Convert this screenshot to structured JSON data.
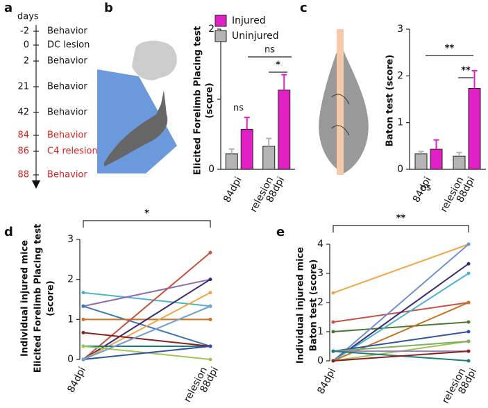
{
  "timeline": {
    "label": "a",
    "title": "days",
    "events": [
      {
        "day": -2,
        "text": "Behavior",
        "color": "#111111"
      },
      {
        "day": 0,
        "text": "DC lesion",
        "color": "#111111"
      },
      {
        "day": 2,
        "text": "Behavior",
        "color": "#111111"
      },
      {
        "day": 21,
        "text": "Behavior",
        "color": "#111111"
      },
      {
        "day": 42,
        "text": "Behavior",
        "color": "#111111"
      },
      {
        "day": 84,
        "text": "Behavior",
        "color": "#d62020"
      },
      {
        "day": 86,
        "text": "C4 relesion",
        "color": "#d62020"
      },
      {
        "day": 88,
        "text": "Behavior",
        "color": "#d62020"
      }
    ]
  },
  "chart_data": [
    {
      "type": "bar",
      "label": "b",
      "ylabel": [
        "Elicited Forelimb Placing test",
        "(score)"
      ],
      "categories": [
        "84dpi",
        [
          "relesion",
          "88dpi"
        ]
      ],
      "legend": "top-left",
      "series": [
        {
          "name": "Injured",
          "color": "#e01fc4",
          "values": [
            0.57,
            1.13
          ],
          "errors": [
            0.17,
            0.22
          ]
        },
        {
          "name": "Uninjured",
          "color": "#b4b4b4",
          "values": [
            0.22,
            0.33
          ],
          "errors": [
            0.07,
            0.11
          ]
        }
      ],
      "ylim": [
        0,
        2
      ],
      "yticks": [
        0,
        1,
        2
      ],
      "annotations": [
        {
          "text": "ns"
        },
        {
          "text": "ns"
        },
        {
          "text": "*"
        }
      ]
    },
    {
      "type": "bar",
      "label": "c",
      "ylabel": [
        "Baton test (score)"
      ],
      "categories": [
        "84dpi",
        [
          "relesion",
          "88dpi"
        ]
      ],
      "series": [
        {
          "name": "Injured",
          "color": "#e01fc4",
          "values": [
            0.43,
            1.73
          ],
          "errors": [
            0.2,
            0.38
          ]
        },
        {
          "name": "Uninjured",
          "color": "#b4b4b4",
          "values": [
            0.33,
            0.28
          ],
          "errors": [
            0.05,
            0.08
          ]
        }
      ],
      "ylim": [
        0,
        3
      ],
      "yticks": [
        0,
        1,
        2,
        3
      ],
      "annotations": [
        {
          "text": "ns"
        },
        {
          "text": "**"
        },
        {
          "text": "**"
        }
      ]
    },
    {
      "type": "line",
      "label": "d",
      "ylabel": [
        "Individual injured mice",
        "Elicited Forelimb Placing test",
        "(score)"
      ],
      "categories": [
        "84dpi",
        [
          "relesion",
          "88dpi"
        ]
      ],
      "series": [
        {
          "color": "#4bb3cc",
          "values": [
            1.67,
            1.33
          ]
        },
        {
          "color": "#8b6cb8",
          "values": [
            1.33,
            2
          ]
        },
        {
          "color": "#3f74b3",
          "values": [
            1.33,
            0.33
          ]
        },
        {
          "color": "#c8701e",
          "values": [
            1,
            1
          ]
        },
        {
          "color": "#c8503e",
          "values": [
            0,
            2.67
          ]
        },
        {
          "color": "#3a2a72",
          "values": [
            0,
            2
          ]
        },
        {
          "color": "#f2a542",
          "values": [
            0,
            1.67
          ]
        },
        {
          "color": "#7a9a8a",
          "values": [
            0,
            1.33
          ]
        },
        {
          "color": "#1f7a7a",
          "values": [
            0.33,
            0.33
          ]
        },
        {
          "color": "#8a2020",
          "values": [
            0.67,
            0.33
          ]
        },
        {
          "color": "#a4c452",
          "values": [
            0.33,
            0
          ]
        },
        {
          "color": "#3052a2",
          "values": [
            0,
            0.33
          ]
        },
        {
          "color": "#72a2d2",
          "values": [
            0,
            1.33
          ]
        }
      ],
      "ylim": [
        0,
        3
      ],
      "yticks": [
        0,
        1,
        2,
        3
      ],
      "annotations": [
        {
          "text": "*"
        }
      ]
    },
    {
      "type": "line",
      "label": "e",
      "ylabel": [
        "Individual injured mice",
        "Baton test (score)"
      ],
      "categories": [
        "84dpi",
        [
          "relesion",
          "88dpi"
        ]
      ],
      "series": [
        {
          "color": "#f2a542",
          "values": [
            2.33,
            4
          ]
        },
        {
          "color": "#c8503e",
          "values": [
            1.33,
            2
          ]
        },
        {
          "color": "#4a7a30",
          "values": [
            1,
            1.33
          ]
        },
        {
          "color": "#7090d2",
          "values": [
            0,
            4
          ]
        },
        {
          "color": "#3a2a72",
          "values": [
            0,
            3.33
          ]
        },
        {
          "color": "#4bb3cc",
          "values": [
            0,
            3
          ]
        },
        {
          "color": "#c8701e",
          "values": [
            0,
            2
          ]
        },
        {
          "color": "#3052a2",
          "values": [
            0.33,
            1
          ]
        },
        {
          "color": "#a4c452",
          "values": [
            0,
            0.67
          ]
        },
        {
          "color": "#7ab060",
          "values": [
            0.33,
            0.67
          ]
        },
        {
          "color": "#9a80c0",
          "values": [
            0.33,
            0.33
          ]
        },
        {
          "color": "#1f7a7a",
          "values": [
            0.33,
            0
          ]
        },
        {
          "color": "#8a2020",
          "values": [
            0,
            0.33
          ]
        }
      ],
      "ylim": [
        0,
        4
      ],
      "yticks": [
        0,
        1,
        2,
        3,
        4
      ],
      "annotations": [
        {
          "text": "**"
        }
      ]
    }
  ]
}
